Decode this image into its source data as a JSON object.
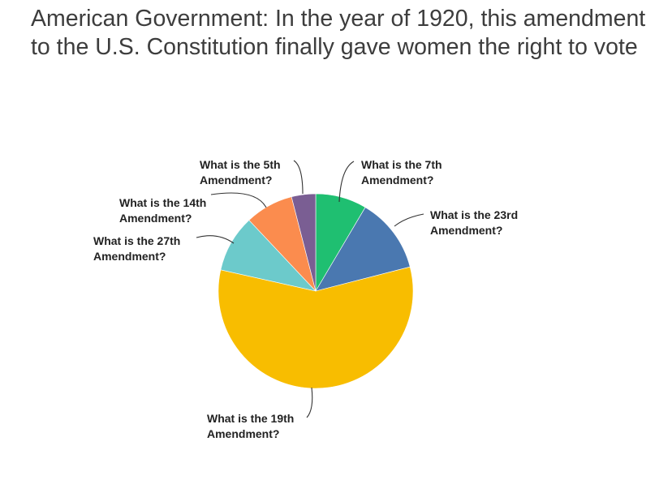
{
  "title": "American Government: In the year of 1920, this amendment to the U.S. Constitution finally gave women the right to vote",
  "chart_data": {
    "type": "pie",
    "title": "American Government: In the year of 1920, this amendment to the U.S. Constitution finally gave women the right to vote",
    "slices": [
      {
        "label_line1": "What is the 7th",
        "label_line2": "Amendment?",
        "value": 8.5,
        "color": "#1fbf71"
      },
      {
        "label_line1": "What is the 23rd",
        "label_line2": "Amendment?",
        "value": 12.5,
        "color": "#4a78b0"
      },
      {
        "label_line1": "What is the 19th",
        "label_line2": "Amendment?",
        "value": 57.5,
        "color": "#f8bd00"
      },
      {
        "label_line1": "What is the 27th",
        "label_line2": "Amendment?",
        "value": 9.5,
        "color": "#6ccacb"
      },
      {
        "label_line1": "What is the 14th",
        "label_line2": "Amendment?",
        "value": 8.0,
        "color": "#fb8c4e"
      },
      {
        "label_line1": "What is the 5th",
        "label_line2": "Amendment?",
        "value": 4.0,
        "color": "#7a5e93"
      }
    ]
  }
}
